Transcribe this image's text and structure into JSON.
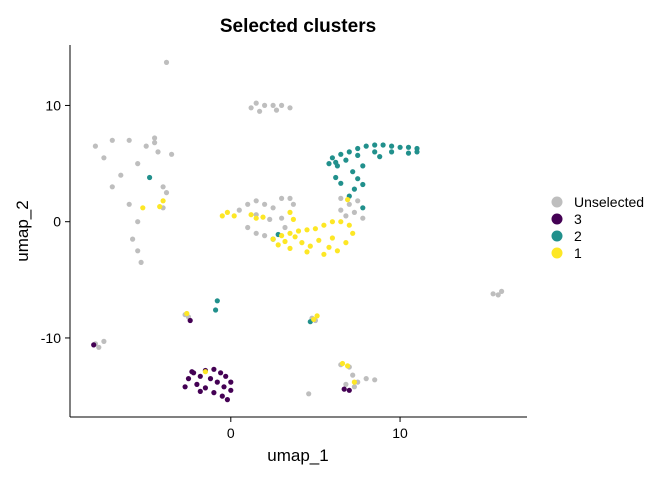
{
  "chart_data": {
    "type": "scatter",
    "title": "Selected clusters",
    "xlabel": "umap_1",
    "ylabel": "umap_2",
    "xlim": [
      -9.5,
      17.5
    ],
    "ylim": [
      -16.8,
      15.2
    ],
    "x_ticks": [
      0,
      10
    ],
    "x_tick_labels": [
      "0",
      "10"
    ],
    "y_ticks": [
      -10,
      0,
      10
    ],
    "y_tick_labels": [
      "-10",
      "0",
      "10"
    ],
    "grid": false,
    "legend": "right",
    "legend_entries": [
      {
        "label": "Unselected",
        "color": "#BEBEBE"
      },
      {
        "label": "3",
        "color": "#440154"
      },
      {
        "label": "2",
        "color": "#21908C"
      },
      {
        "label": "1",
        "color": "#FDE725"
      }
    ],
    "series": [
      {
        "name": "Unselected",
        "color": "#BEBEBE",
        "points": [
          [
            -8,
            6.5
          ],
          [
            -7,
            7
          ],
          [
            -6,
            7
          ],
          [
            -5,
            6.5
          ],
          [
            -4.5,
            6.8
          ],
          [
            -5.5,
            5
          ],
          [
            -6.5,
            4
          ],
          [
            -7.5,
            5.5
          ],
          [
            -7,
            3
          ],
          [
            -6,
            1.5
          ],
          [
            -5.5,
            0
          ],
          [
            -5.8,
            -1.5
          ],
          [
            -5.5,
            -2.5
          ],
          [
            -5.3,
            -3.5
          ],
          [
            -4.5,
            7.2
          ],
          [
            -4.3,
            6
          ],
          [
            -4,
            3
          ],
          [
            -4,
            1.2
          ],
          [
            -3.8,
            2.5
          ],
          [
            -3.5,
            5.8
          ],
          [
            1.5,
            10.2
          ],
          [
            2,
            10
          ],
          [
            2.5,
            10
          ],
          [
            3,
            10
          ],
          [
            3.5,
            9.8
          ],
          [
            1.7,
            9.5
          ],
          [
            2.7,
            9.6
          ],
          [
            1.2,
            9.8
          ],
          [
            -3.8,
            13.7
          ],
          [
            0.5,
            1
          ],
          [
            1,
            1.5
          ],
          [
            1.5,
            1.8
          ],
          [
            2,
            1.5
          ],
          [
            2.5,
            1.2
          ],
          [
            1.5,
            0.6
          ],
          [
            2.3,
            0.2
          ],
          [
            1,
            -0.5
          ],
          [
            1.5,
            -1
          ],
          [
            2,
            -1.2
          ],
          [
            3,
            0.3
          ],
          [
            3.2,
            -0.5
          ],
          [
            3.5,
            2
          ],
          [
            3.7,
            1.5
          ],
          [
            3,
            2
          ],
          [
            6.5,
            2
          ],
          [
            7,
            1.5
          ],
          [
            7.5,
            1.8
          ],
          [
            7.3,
            0.8
          ],
          [
            6.8,
            0.5
          ],
          [
            6.5,
            1
          ],
          [
            7.8,
            0.3
          ],
          [
            15.5,
            -6.2
          ],
          [
            16,
            -6
          ],
          [
            15.8,
            -6.3
          ],
          [
            -8,
            -10.5
          ],
          [
            -7.8,
            -10.8
          ],
          [
            -7.5,
            -10.3
          ],
          [
            -2.7,
            -8
          ],
          [
            -2.5,
            -8.2
          ],
          [
            4.8,
            -8.3
          ],
          [
            5,
            -8.5
          ],
          [
            6.5,
            -12.3
          ],
          [
            7,
            -12.5
          ],
          [
            7.2,
            -13.2
          ],
          [
            7.5,
            -13.8
          ],
          [
            8,
            -13.5
          ],
          [
            6.8,
            -14
          ],
          [
            7.3,
            -14.2
          ],
          [
            4.6,
            -14.8
          ],
          [
            8.5,
            -13.6
          ]
        ]
      },
      {
        "name": "3",
        "color": "#440154",
        "points": [
          [
            -2.5,
            -13.5
          ],
          [
            -2.2,
            -13
          ],
          [
            -2,
            -14
          ],
          [
            -1.8,
            -13.3
          ],
          [
            -1.5,
            -12.8
          ],
          [
            -1.5,
            -14.3
          ],
          [
            -1.2,
            -13.5
          ],
          [
            -1,
            -12.7
          ],
          [
            -1,
            -14.7
          ],
          [
            -0.8,
            -13.8
          ],
          [
            -0.6,
            -13
          ],
          [
            -0.5,
            -15
          ],
          [
            -0.4,
            -14.2
          ],
          [
            -0.3,
            -13.3
          ],
          [
            -0.2,
            -15.3
          ],
          [
            0,
            -14.5
          ],
          [
            0,
            -13.8
          ],
          [
            -2.7,
            -14.2
          ],
          [
            -1.8,
            -14.6
          ],
          [
            -2.3,
            -12.9
          ],
          [
            -8.1,
            -10.6
          ],
          [
            -2.4,
            -8.5
          ],
          [
            6.7,
            -14.4
          ],
          [
            7,
            -14.5
          ]
        ]
      },
      {
        "name": "2",
        "color": "#21908C",
        "points": [
          [
            6,
            5.5
          ],
          [
            6.5,
            5.8
          ],
          [
            7,
            6
          ],
          [
            7.5,
            6.3
          ],
          [
            8,
            6.5
          ],
          [
            8.5,
            6.6
          ],
          [
            9,
            6.6
          ],
          [
            9.5,
            6.5
          ],
          [
            10,
            6.4
          ],
          [
            10.5,
            6.4
          ],
          [
            11,
            6.3
          ],
          [
            11,
            6
          ],
          [
            10.5,
            5.9
          ],
          [
            9.5,
            6
          ],
          [
            8.5,
            6
          ],
          [
            7.5,
            5.7
          ],
          [
            6.8,
            5.3
          ],
          [
            6.2,
            5.1
          ],
          [
            7.8,
            4.8
          ],
          [
            7.2,
            4.3
          ],
          [
            7.5,
            3.7
          ],
          [
            7.8,
            3.2
          ],
          [
            7.3,
            2.8
          ],
          [
            7,
            2.2
          ],
          [
            6.2,
            3.8
          ],
          [
            6.5,
            3.3
          ],
          [
            7.8,
            1.2
          ],
          [
            5.8,
            5
          ],
          [
            6.3,
            4.8
          ],
          [
            8.8,
            5.6
          ],
          [
            -4.8,
            3.8
          ],
          [
            -0.8,
            -6.8
          ],
          [
            -0.9,
            -7.6
          ],
          [
            4.7,
            -8.6
          ],
          [
            2.5,
            -1.5
          ],
          [
            2.8,
            -1.1
          ]
        ]
      },
      {
        "name": "1",
        "color": "#FDE725",
        "points": [
          [
            2.5,
            -1.5
          ],
          [
            3,
            -1.2
          ],
          [
            3.5,
            -1
          ],
          [
            4,
            -0.8
          ],
          [
            4.5,
            -0.7
          ],
          [
            5,
            -0.6
          ],
          [
            5.5,
            -0.3
          ],
          [
            6,
            0
          ],
          [
            6.5,
            0
          ],
          [
            7,
            -0.3
          ],
          [
            7.2,
            -1
          ],
          [
            6.8,
            -1.8
          ],
          [
            6.3,
            -2.5
          ],
          [
            5.5,
            -2.8
          ],
          [
            4.5,
            -2.6
          ],
          [
            3.5,
            -2.3
          ],
          [
            2.8,
            -2
          ],
          [
            3.2,
            -1.7
          ],
          [
            4.2,
            -1.8
          ],
          [
            5.2,
            -1.6
          ],
          [
            6,
            -1.4
          ],
          [
            5.8,
            -2.2
          ],
          [
            4.7,
            -2.1
          ],
          [
            3.8,
            -1.3
          ],
          [
            -0.5,
            0.5
          ],
          [
            -0.2,
            0.8
          ],
          [
            0.2,
            0.5
          ],
          [
            1.2,
            0.6
          ],
          [
            1.5,
            0.3
          ],
          [
            1.9,
            0.4
          ],
          [
            3.5,
            0.8
          ],
          [
            3.7,
            0.2
          ],
          [
            -4.2,
            1.3
          ],
          [
            -4,
            1.8
          ],
          [
            -5.2,
            1.2
          ],
          [
            -2.6,
            -7.9
          ],
          [
            5.1,
            -8.1
          ],
          [
            4.9,
            -8.4
          ],
          [
            6.6,
            -12.2
          ],
          [
            6.9,
            -12.4
          ],
          [
            7.3,
            -13.8
          ],
          [
            -1.5,
            -12.9
          ],
          [
            6.9,
            1.9
          ]
        ]
      }
    ]
  }
}
